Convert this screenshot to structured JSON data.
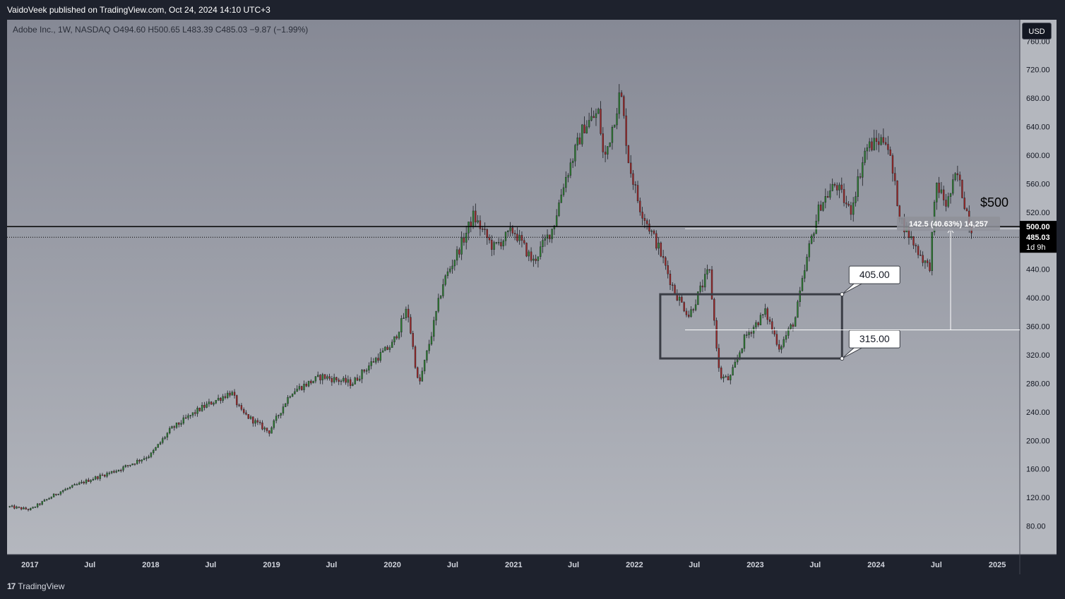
{
  "header": {
    "published_text": "VaidoVeek published on TradingView.com, Oct 24, 2024 14:10 UTC+3"
  },
  "legend": {
    "symbol_line": "Adobe Inc., 1W, NASDAQ  O494.60  H500.65  L483.39  C485.03  −9.87 (−1.99%)"
  },
  "toolbar": {
    "currency_label": "USD"
  },
  "footer": {
    "logo_text": "TradingView",
    "logo_mark": "17"
  },
  "colors": {
    "background_top": "#868995",
    "background_bottom": "#b4b7be",
    "up_candle": "#2e7d32",
    "down_candle": "#9c2727",
    "axis_bg": "#b4b7be",
    "horizontal_line": "#000000",
    "box_stroke": "#3a3d45"
  },
  "chart_data": {
    "type": "candlestick",
    "symbol": "ADBE",
    "interval": "1W",
    "y_axis": {
      "ticks": [
        80,
        120,
        160,
        200,
        240,
        280,
        320,
        360,
        400,
        440,
        480,
        520,
        560,
        600,
        640,
        680,
        720,
        760
      ],
      "tick_labels": [
        "80.00",
        "120.00",
        "160.00",
        "200.00",
        "240.00",
        "280.00",
        "320.00",
        "360.00",
        "400.00",
        "440.00",
        "",
        "520.00",
        "560.00",
        "600.00",
        "640.00",
        "680.00",
        "720.00",
        "760.00"
      ],
      "range": [
        40,
        790
      ]
    },
    "x_axis": {
      "range": [
        "2016-10-24",
        "2025-03-10"
      ],
      "tick_labels": [
        "2017",
        "Jul",
        "2018",
        "Jul",
        "2019",
        "Jul",
        "2020",
        "Jul",
        "2021",
        "Jul",
        "2022",
        "Jul",
        "2023",
        "Jul",
        "2024",
        "Jul",
        "2025"
      ],
      "tick_dates": [
        "2017-01-01",
        "2017-07-01",
        "2018-01-01",
        "2018-07-01",
        "2019-01-01",
        "2019-07-01",
        "2020-01-01",
        "2020-07-01",
        "2021-01-01",
        "2021-07-01",
        "2022-01-01",
        "2022-07-01",
        "2023-01-01",
        "2023-07-01",
        "2024-01-01",
        "2024-07-01",
        "2025-01-01"
      ]
    },
    "series": [
      {
        "date": "2016-11-01",
        "close": 107
      },
      {
        "date": "2017-01-01",
        "close": 103
      },
      {
        "date": "2017-04-01",
        "close": 128
      },
      {
        "date": "2017-07-01",
        "close": 145
      },
      {
        "date": "2017-10-01",
        "close": 160
      },
      {
        "date": "2018-01-01",
        "close": 180
      },
      {
        "date": "2018-03-01",
        "close": 215
      },
      {
        "date": "2018-06-01",
        "close": 245
      },
      {
        "date": "2018-09-01",
        "close": 268
      },
      {
        "date": "2018-10-01",
        "close": 240
      },
      {
        "date": "2018-12-24",
        "close": 212
      },
      {
        "date": "2019-03-01",
        "close": 268
      },
      {
        "date": "2019-06-01",
        "close": 290
      },
      {
        "date": "2019-09-01",
        "close": 280
      },
      {
        "date": "2019-11-01",
        "close": 310
      },
      {
        "date": "2020-01-01",
        "close": 335
      },
      {
        "date": "2020-02-15",
        "close": 385
      },
      {
        "date": "2020-03-20",
        "close": 275
      },
      {
        "date": "2020-05-01",
        "close": 355
      },
      {
        "date": "2020-06-01",
        "close": 420
      },
      {
        "date": "2020-08-01",
        "close": 480
      },
      {
        "date": "2020-09-01",
        "close": 515
      },
      {
        "date": "2020-11-01",
        "close": 470
      },
      {
        "date": "2021-01-01",
        "close": 495
      },
      {
        "date": "2021-03-01",
        "close": 450
      },
      {
        "date": "2021-05-01",
        "close": 500
      },
      {
        "date": "2021-06-01",
        "close": 560
      },
      {
        "date": "2021-08-01",
        "close": 640
      },
      {
        "date": "2021-09-15",
        "close": 660
      },
      {
        "date": "2021-10-01",
        "close": 590
      },
      {
        "date": "2021-11-20",
        "close": 690
      },
      {
        "date": "2021-12-15",
        "close": 590
      },
      {
        "date": "2022-01-15",
        "close": 530
      },
      {
        "date": "2022-03-15",
        "close": 470
      },
      {
        "date": "2022-05-01",
        "close": 410
      },
      {
        "date": "2022-06-15",
        "close": 375
      },
      {
        "date": "2022-08-15",
        "close": 440
      },
      {
        "date": "2022-09-15",
        "close": 290
      },
      {
        "date": "2022-10-15",
        "close": 285
      },
      {
        "date": "2022-12-01",
        "close": 345
      },
      {
        "date": "2023-02-01",
        "close": 380
      },
      {
        "date": "2023-03-15",
        "close": 330
      },
      {
        "date": "2023-05-01",
        "close": 370
      },
      {
        "date": "2023-06-15",
        "close": 475
      },
      {
        "date": "2023-07-15",
        "close": 530
      },
      {
        "date": "2023-09-01",
        "close": 560
      },
      {
        "date": "2023-10-15",
        "close": 520
      },
      {
        "date": "2023-12-01",
        "close": 610
      },
      {
        "date": "2024-02-01",
        "close": 625
      },
      {
        "date": "2024-03-15",
        "close": 510
      },
      {
        "date": "2024-05-01",
        "close": 470
      },
      {
        "date": "2024-06-10",
        "close": 440
      },
      {
        "date": "2024-07-01",
        "close": 560
      },
      {
        "date": "2024-08-01",
        "close": 530
      },
      {
        "date": "2024-09-01",
        "close": 575
      },
      {
        "date": "2024-10-21",
        "close": 485
      }
    ],
    "annotations": {
      "horizontal_line": {
        "value": 500,
        "label": "$500",
        "axis_label": "500.00"
      },
      "last_price": {
        "value": 485.03,
        "label": "485.03",
        "countdown": "1d 9h"
      },
      "box": {
        "from_date": "2022-03-20",
        "to_date": "2023-09-20",
        "top": 405,
        "bottom": 315
      },
      "callouts": [
        {
          "label": "405.00",
          "value": 405
        },
        {
          "label": "315.00",
          "value": 315
        }
      ],
      "measure": {
        "label": "142.5 (40.63%) 14,257",
        "from_value": 355,
        "to_value": 497,
        "date": "2024-06-10"
      }
    }
  }
}
